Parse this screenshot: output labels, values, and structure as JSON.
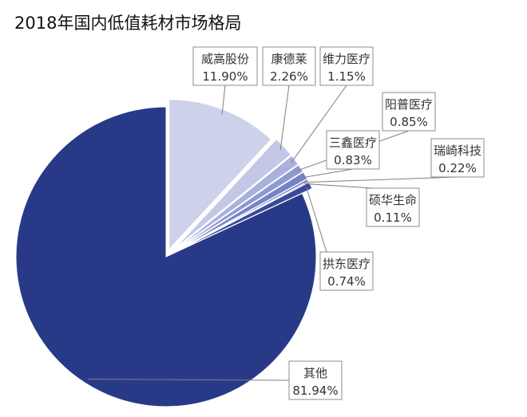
{
  "chart_data": {
    "type": "pie",
    "title": "2018年国内低值耗材市场格局",
    "slices": [
      {
        "name": "威高股份",
        "value": 11.9,
        "label": "11.90%",
        "color": "#cdd1ea",
        "exploded": true
      },
      {
        "name": "康德莱",
        "value": 2.26,
        "label": "2.26%",
        "color": "#c3c8e6",
        "exploded": true
      },
      {
        "name": "维力医疗",
        "value": 1.15,
        "label": "1.15%",
        "color": "#a9b1dc",
        "exploded": true
      },
      {
        "name": "阳普医疗",
        "value": 0.85,
        "label": "0.85%",
        "color": "#8e99cf",
        "exploded": true
      },
      {
        "name": "三鑫医疗",
        "value": 0.83,
        "label": "0.83%",
        "color": "#7783c4",
        "exploded": true
      },
      {
        "name": "瑞崎科技",
        "value": 0.22,
        "label": "0.22%",
        "color": "#5f6db8",
        "exploded": true
      },
      {
        "name": "硕华生命",
        "value": 0.11,
        "label": "0.11%",
        "color": "#4c5ba9",
        "exploded": true
      },
      {
        "name": "拱东医疗",
        "value": 0.74,
        "label": "0.74%",
        "color": "#3a4a9c",
        "exploded": true
      },
      {
        "name": "其他",
        "value": 81.94,
        "label": "81.94%",
        "color": "#283a87",
        "exploded": false
      }
    ],
    "legend": "none"
  }
}
